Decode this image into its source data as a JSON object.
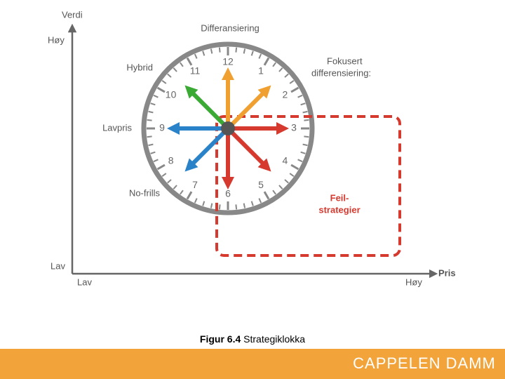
{
  "axes": {
    "y_title": "Verdi",
    "y_high": "Høy",
    "y_low": "Lav",
    "x_title": "Pris",
    "x_low": "Lav",
    "x_high": "Høy"
  },
  "clock": {
    "numbers": [
      "1",
      "2",
      "3",
      "4",
      "5",
      "6",
      "7",
      "8",
      "9",
      "10",
      "11",
      "12"
    ]
  },
  "labels": {
    "top": "Differansiering",
    "hybrid": "Hybrid",
    "focused": [
      "Fokusert",
      "differensiering:"
    ],
    "low_price": "Lavpris",
    "no_frills": "No-frills",
    "failure": [
      "Feil-",
      "strategier"
    ]
  },
  "caption": {
    "label": "Figur 6.4",
    "text": "Strategiklokka"
  },
  "footer": {
    "brand": "CAPPELEN DAMM"
  }
}
